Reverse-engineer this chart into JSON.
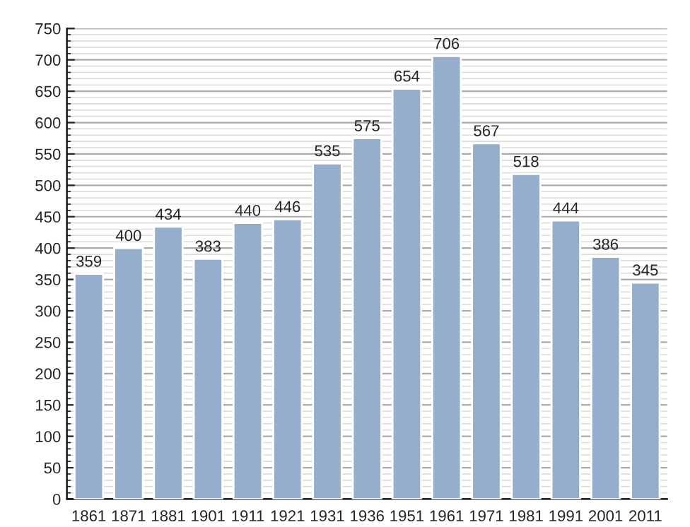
{
  "chart_data": {
    "type": "bar",
    "categories": [
      "1861",
      "1871",
      "1881",
      "1901",
      "1911",
      "1921",
      "1931",
      "1936",
      "1951",
      "1961",
      "1971",
      "1981",
      "1991",
      "2001",
      "2011"
    ],
    "values": [
      359,
      400,
      434,
      383,
      440,
      446,
      535,
      575,
      654,
      706,
      567,
      518,
      444,
      386,
      345
    ],
    "color": "#94aecb",
    "ylim": [
      0,
      750
    ],
    "yticks": [
      0,
      50,
      100,
      150,
      200,
      250,
      300,
      350,
      400,
      450,
      500,
      550,
      600,
      650,
      700,
      750
    ],
    "grid": "y",
    "data_labels": true
  }
}
